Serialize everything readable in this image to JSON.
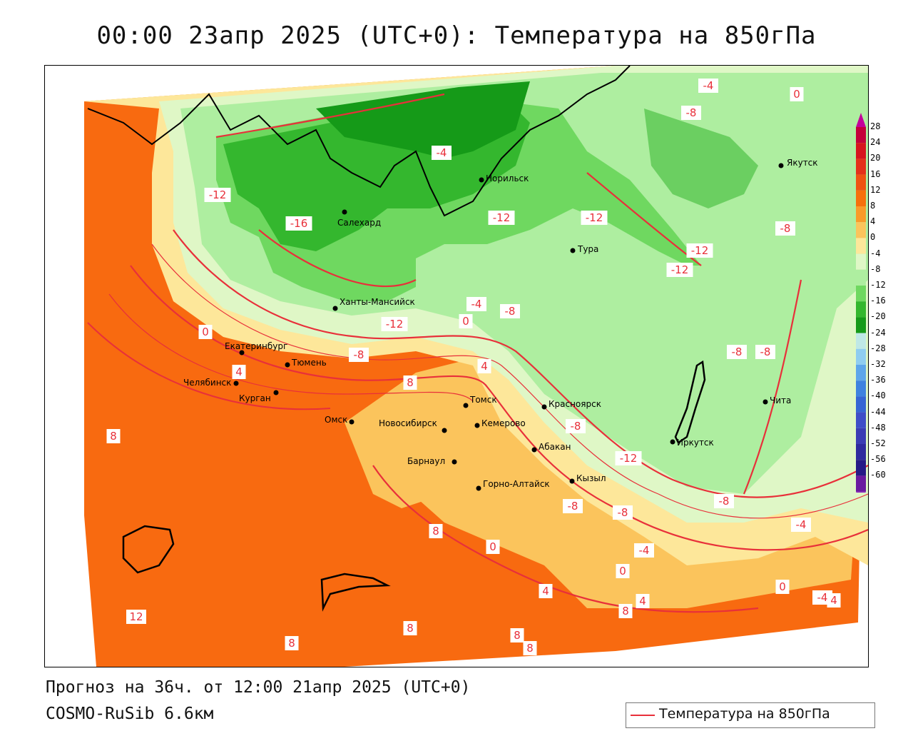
{
  "header": {
    "title": "00:00 23апр 2025 (UTC+0): Температура на 850гПа"
  },
  "footer": {
    "forecast": "Прогноз на 36ч. от 12:00 21апр 2025 (UTC+0)",
    "model": "COSMO-RuSib 6.6км"
  },
  "legend": {
    "label": "Температура на 850гПа",
    "line_color": "#e8303a"
  },
  "color_scale": {
    "labels": [
      "28",
      "24",
      "20",
      "16",
      "12",
      "8",
      "4",
      "0",
      "-4",
      "-8",
      "-12",
      "-16",
      "-20",
      "-24",
      "-28",
      "-32",
      "-36",
      "-40",
      "-44",
      "-48",
      "-52",
      "-56",
      "-60"
    ],
    "colors": [
      "#c4003a",
      "#d6141e",
      "#e4301a",
      "#ef5212",
      "#f6700c",
      "#f99a2a",
      "#fbc45c",
      "#fde79a",
      "#dff7c6",
      "#aeeea0",
      "#6fd860",
      "#34b72e",
      "#159a18",
      "#bfe8e6",
      "#8fcdf0",
      "#5ea6ea",
      "#3f82df",
      "#3665d4",
      "#3f4ec7",
      "#3b3cb4",
      "#2f2a9e",
      "#261a86",
      "#6a1aa0"
    ]
  },
  "cities": [
    {
      "name": "Якутск"
    },
    {
      "name": "Норильск"
    },
    {
      "name": "Салехард"
    },
    {
      "name": "Тура"
    },
    {
      "name": "Ханты-Мансийск"
    },
    {
      "name": "Екатеринбург"
    },
    {
      "name": "Тюмень"
    },
    {
      "name": "Челябинск"
    },
    {
      "name": "Курган"
    },
    {
      "name": "Омск"
    },
    {
      "name": "Новосибирск"
    },
    {
      "name": "Томск"
    },
    {
      "name": "Кемерово"
    },
    {
      "name": "Красноярск"
    },
    {
      "name": "Барнаул"
    },
    {
      "name": "Абакан"
    },
    {
      "name": "Иркутск"
    },
    {
      "name": "Чита"
    },
    {
      "name": "Кызыл"
    },
    {
      "name": "Горно-Алтайск"
    }
  ],
  "isotherm_labels": [
    "-4",
    "0",
    "-8",
    "-4",
    "-12",
    "-16",
    "-12",
    "-12",
    "-12",
    "-8",
    "-12",
    "-8",
    "-4",
    "0",
    "-8",
    "-12",
    "0",
    "-8",
    "8",
    "4",
    "4",
    "-8",
    "-8",
    "8",
    "-8",
    "-12",
    "-4",
    "8",
    "-8",
    "-8",
    "-4",
    "0",
    "0",
    "4",
    "4",
    "8",
    "-4",
    "0",
    "4",
    "12",
    "8",
    "8",
    "8",
    "8"
  ]
}
